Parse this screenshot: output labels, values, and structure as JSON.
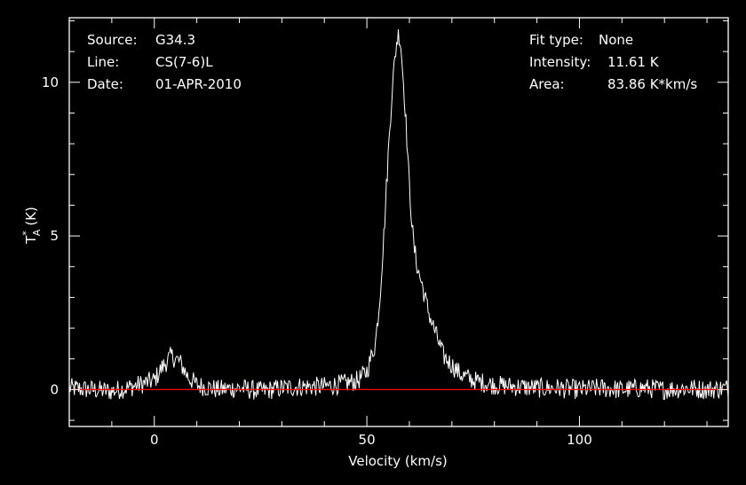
{
  "header": {
    "left": [
      {
        "label": "Source:",
        "value": "G34.3"
      },
      {
        "label": "Line:",
        "value": "CS(7-6)L"
      },
      {
        "label": "Date:",
        "value": "01-APR-2010"
      }
    ],
    "right": [
      {
        "label": "Fit type:",
        "value": "None"
      },
      {
        "label": "Intensity:",
        "value": "11.61 K"
      },
      {
        "label": "Area:",
        "value": "83.86 K*km/s"
      }
    ]
  },
  "colors": {
    "background": "#000000",
    "axes": "#ffffff",
    "spectrum": "#ffffff",
    "baseline": "#ff0000"
  },
  "chart_data": {
    "type": "line",
    "title": "",
    "xlabel": "Velocity (km/s)",
    "ylabel_main": "T",
    "ylabel_sup": "*",
    "ylabel_sub": "A",
    "ylabel_unit": "(K)",
    "xlim": [
      -20,
      135
    ],
    "ylim": [
      -1.2,
      12.1
    ],
    "xticks": [
      0,
      50,
      100
    ],
    "yticks": [
      0,
      5,
      10
    ],
    "xtick_labels": [
      "0",
      "50",
      "100"
    ],
    "ytick_labels": [
      "0",
      "5",
      "10"
    ],
    "baseline_y": 0,
    "series": [
      {
        "x": [
          -20,
          -15,
          -10,
          -5,
          0,
          2,
          4,
          6,
          8,
          10,
          15,
          20,
          25,
          30,
          35,
          40,
          45,
          48,
          50,
          52,
          53,
          54,
          55,
          56,
          57,
          57.5,
          58,
          59,
          60,
          61,
          62,
          63,
          64,
          65,
          66,
          67,
          68,
          70,
          72,
          75,
          80,
          85,
          90,
          95,
          100,
          105,
          110,
          115,
          120,
          125,
          130,
          135
        ],
        "y": [
          0.05,
          0.0,
          -0.05,
          0.1,
          0.3,
          0.75,
          1.1,
          0.9,
          0.4,
          0.15,
          0.0,
          0.05,
          -0.05,
          0.05,
          0.1,
          0.1,
          0.2,
          0.3,
          0.6,
          1.5,
          2.9,
          5.0,
          7.6,
          9.9,
          11.3,
          11.61,
          11.2,
          9.2,
          6.6,
          4.7,
          3.9,
          3.4,
          2.8,
          2.3,
          1.9,
          1.5,
          1.1,
          0.8,
          0.5,
          0.3,
          0.15,
          0.1,
          0.05,
          0.05,
          0.0,
          0.05,
          0.0,
          0.05,
          0.0,
          0.05,
          0.0,
          0.05
        ]
      }
    ]
  }
}
